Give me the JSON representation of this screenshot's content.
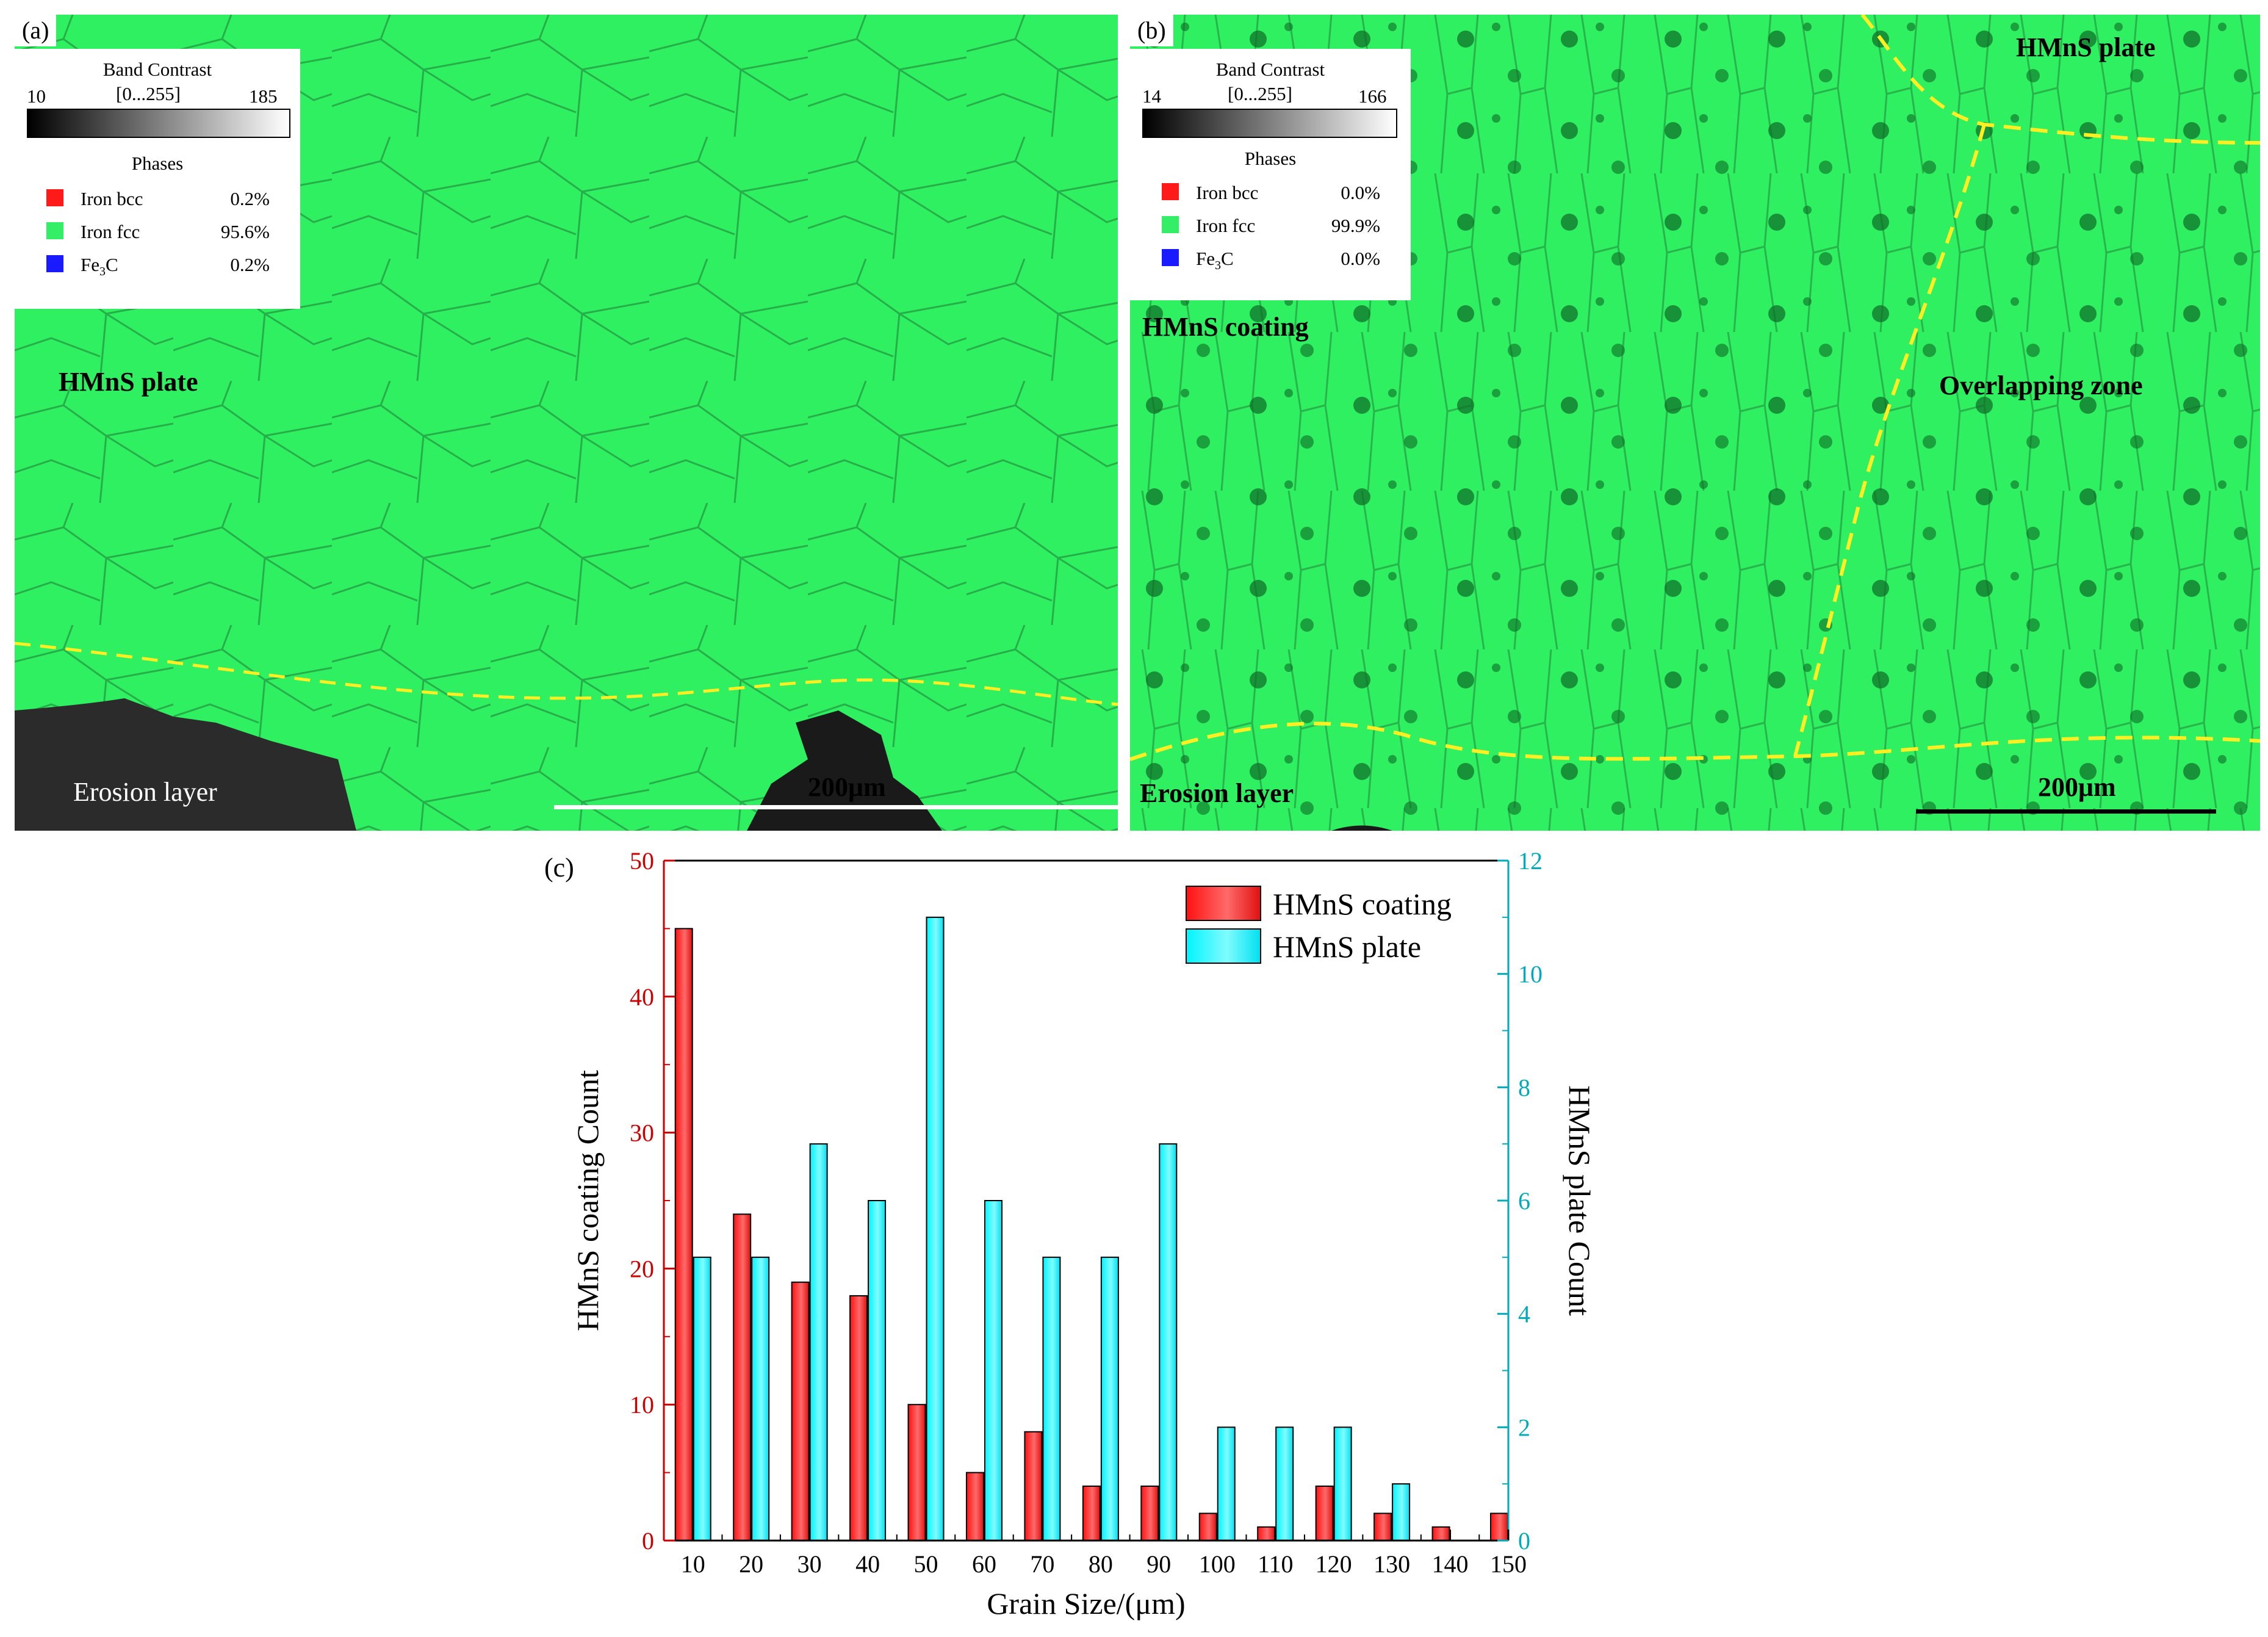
{
  "panel_a": {
    "letter": "(a)",
    "band_contrast": {
      "title": "Band Contrast",
      "min": "10",
      "range": "[0...255]",
      "max": "185"
    },
    "phases_title": "Phases",
    "phases": [
      {
        "name": "Iron bcc",
        "value": "0.2%",
        "color": "#ff1a1a"
      },
      {
        "name": "Iron fcc",
        "value": "95.6%",
        "color": "#33ee66"
      },
      {
        "name_main": "Fe",
        "name_sub": "3",
        "name_tail": "C",
        "value": "0.2%",
        "color": "#1a1aff"
      }
    ],
    "label_plate": "HMnS plate",
    "label_erosion": "Erosion layer",
    "scale_text": "200μm"
  },
  "panel_b": {
    "letter": "(b)",
    "band_contrast": {
      "title": "Band Contrast",
      "min": "14",
      "range": "[0...255]",
      "max": "166"
    },
    "phases_title": "Phases",
    "phases": [
      {
        "name": "Iron bcc",
        "value": "0.0%",
        "color": "#ff1a1a"
      },
      {
        "name": "Iron fcc",
        "value": "99.9%",
        "color": "#33ee66"
      },
      {
        "name_main": "Fe",
        "name_sub": "3",
        "name_tail": "C",
        "value": "0.0%",
        "color": "#1a1aff"
      }
    ],
    "label_plate": "HMnS plate",
    "label_coating": "HMnS coating",
    "label_overlap": "Overlapping zone",
    "label_erosion": "Erosion layer",
    "scale_text": "200μm"
  },
  "chart_data": {
    "type": "bar",
    "panel_letter": "(c)",
    "x": [
      10,
      20,
      30,
      40,
      50,
      60,
      70,
      80,
      90,
      100,
      110,
      120,
      130,
      140
    ],
    "xlabel": "Grain Size/(μm)",
    "xlim": [
      5,
      150
    ],
    "xticks": [
      10,
      20,
      30,
      40,
      50,
      60,
      70,
      80,
      90,
      100,
      110,
      120,
      130,
      140,
      150
    ],
    "series": [
      {
        "name": "HMnS coating",
        "axis": "left",
        "color": "#ff3333",
        "x": [
          10,
          20,
          30,
          40,
          50,
          60,
          70,
          80,
          90,
          100,
          110,
          120,
          130,
          140,
          150
        ],
        "values": [
          45,
          24,
          19,
          18,
          10,
          5,
          8,
          4,
          4,
          2,
          1,
          4,
          2,
          1,
          2
        ]
      },
      {
        "name": "HMnS plate",
        "axis": "right",
        "color": "#00eeff",
        "x": [
          10,
          20,
          30,
          40,
          50,
          60,
          70,
          80,
          90,
          100,
          110,
          120,
          130,
          140,
          150
        ],
        "values": [
          5,
          5,
          7,
          6,
          11,
          6,
          5,
          5,
          7,
          2,
          2,
          2,
          1,
          0,
          0
        ]
      }
    ],
    "ylabel_left": "HMnS coating Count",
    "ylim_left": [
      0,
      50
    ],
    "yticks_left": [
      0,
      10,
      20,
      30,
      40,
      50
    ],
    "ylabel_right": "HMnS plate Count",
    "ylim_right": [
      0,
      12
    ],
    "yticks_right": [
      0,
      2,
      4,
      6,
      8,
      10,
      12
    ],
    "left_axis_color": "#cc0000",
    "right_axis_color": "#00aabb",
    "legend_position": "top-right"
  }
}
